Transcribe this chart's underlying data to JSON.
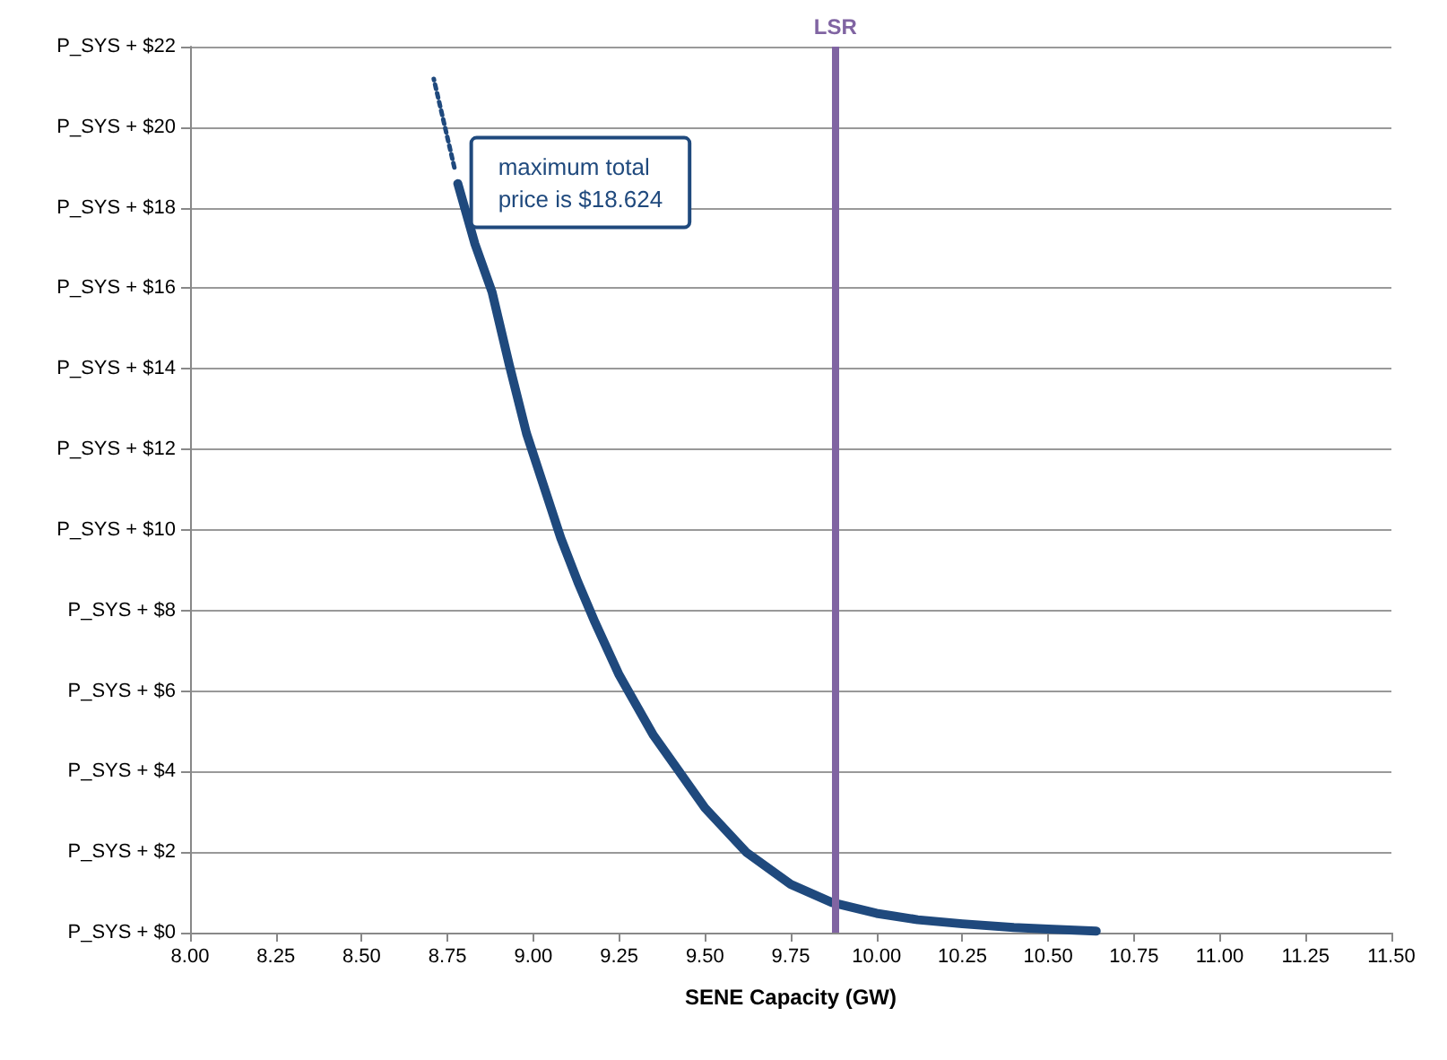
{
  "chart_data": {
    "type": "line",
    "xlabel": "SENE Capacity (GW)",
    "series": [
      {
        "color": "#1f497d",
        "line_style": "solid",
        "x": [
          8.78,
          8.83,
          8.88,
          8.93,
          8.98,
          9.03,
          9.08,
          9.13,
          9.18,
          9.25,
          9.35,
          9.5,
          9.62,
          9.75,
          9.87,
          10.0,
          10.12,
          10.25,
          10.4,
          10.5,
          10.64
        ],
        "values": [
          18.6,
          17.1,
          15.9,
          14.1,
          12.4,
          11.1,
          9.8,
          8.7,
          7.7,
          6.4,
          4.9,
          3.1,
          2.0,
          1.2,
          0.75,
          0.48,
          0.32,
          0.22,
          0.13,
          0.09,
          0.04
        ]
      },
      {
        "color": "#1f497d",
        "line_style": "dotted",
        "x": [
          8.77,
          8.71
        ],
        "values": [
          19.0,
          21.2
        ]
      }
    ],
    "xlim": [
      8,
      11.5
    ],
    "xticks": [
      {
        "value": 8,
        "label": "8.00"
      },
      {
        "value": 8.25,
        "label": "8.25"
      },
      {
        "value": 8.5,
        "label": "8.50"
      },
      {
        "value": 8.75,
        "label": "8.75"
      },
      {
        "value": 9,
        "label": "9.00"
      },
      {
        "value": 9.25,
        "label": "9.25"
      },
      {
        "value": 9.5,
        "label": "9.50"
      },
      {
        "value": 9.75,
        "label": "9.75"
      },
      {
        "value": 10,
        "label": "10.00"
      },
      {
        "value": 10.25,
        "label": "10.25"
      },
      {
        "value": 10.5,
        "label": "10.50"
      },
      {
        "value": 10.75,
        "label": "10.75"
      },
      {
        "value": 11,
        "label": "11.00"
      },
      {
        "value": 11.25,
        "label": "11.25"
      },
      {
        "value": 11.5,
        "label": "11.50"
      }
    ],
    "ylim": [
      0,
      22
    ],
    "yticks": [
      {
        "value": 0,
        "label": "P_SYS + $0"
      },
      {
        "value": 2,
        "label": "P_SYS + $2"
      },
      {
        "value": 4,
        "label": "P_SYS + $4"
      },
      {
        "value": 6,
        "label": "P_SYS + $6"
      },
      {
        "value": 8,
        "label": "P_SYS + $8"
      },
      {
        "value": 10,
        "label": "P_SYS + $10"
      },
      {
        "value": 12,
        "label": "P_SYS + $12"
      },
      {
        "value": 14,
        "label": "P_SYS + $14"
      },
      {
        "value": 16,
        "label": "P_SYS + $16"
      },
      {
        "value": 18,
        "label": "P_SYS + $18"
      },
      {
        "value": 20,
        "label": "P_SYS + $20"
      },
      {
        "value": 22,
        "label": "P_SYS + $22"
      }
    ],
    "ref_lines": [
      {
        "axis": "x",
        "value": 9.875,
        "label": "LSR",
        "color": "#8064a2"
      }
    ],
    "annotations": [
      {
        "text": "maximum total\nprice is $18.624",
        "x": 8.78,
        "y": 18.624
      }
    ],
    "grid": "y",
    "marker": "none"
  }
}
